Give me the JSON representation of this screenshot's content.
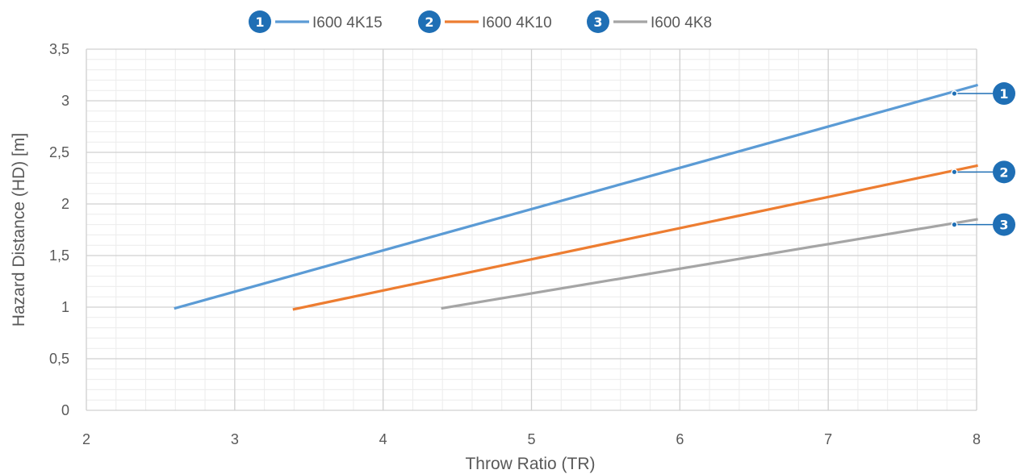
{
  "chart_data": {
    "type": "line",
    "xlabel": "Throw Ratio (TR)",
    "ylabel": "Hazard Distance (HD) [m]",
    "xlim": [
      2,
      8
    ],
    "ylim": [
      0,
      3.5
    ],
    "x_ticks": [
      "2",
      "3",
      "4",
      "5",
      "6",
      "7",
      "8"
    ],
    "y_ticks": [
      "0",
      "0,5",
      "1",
      "1,5",
      "2",
      "2,5",
      "3",
      "3,5"
    ],
    "grid": true,
    "minor_grid": true,
    "legend_position": "top",
    "series": [
      {
        "badge": "1",
        "name": "I600 4K15",
        "color": "#5b9bd5",
        "x": [
          2.6,
          8
        ],
        "y": [
          0.99,
          3.15
        ],
        "callout_x": 7.85,
        "callout_y": 3.07
      },
      {
        "badge": "2",
        "name": "I600 4K10",
        "color": "#ed7d31",
        "x": [
          3.4,
          8
        ],
        "y": [
          0.98,
          2.37
        ],
        "callout_x": 7.85,
        "callout_y": 2.31
      },
      {
        "badge": "3",
        "name": "I600 4K8",
        "color": "#a5a5a5",
        "x": [
          4.4,
          8
        ],
        "y": [
          0.99,
          1.85
        ],
        "callout_x": 7.85,
        "callout_y": 1.8
      }
    ],
    "badge_color": "#1f6fb5"
  }
}
